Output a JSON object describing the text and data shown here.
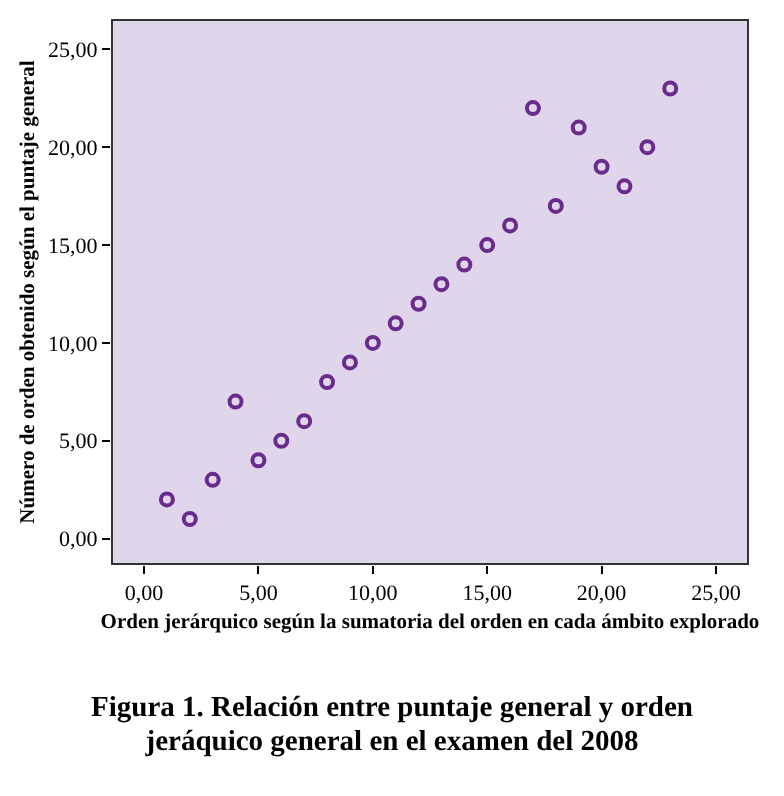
{
  "chart_data": {
    "type": "scatter",
    "xlabel": "Orden jerárquico según la sumatoria del orden en cada ámbito explorado",
    "ylabel": "Número de orden obtenido según el puntaje general",
    "annotations": [
      "Figura 1. Relación entre puntaje general y orden jeráquico general en el examen del 2008"
    ],
    "x": [
      1,
      2,
      3,
      4,
      5,
      6,
      7,
      8,
      9,
      10,
      11,
      12,
      13,
      14,
      15,
      16,
      17,
      18,
      19,
      20,
      21,
      22,
      23
    ],
    "series": [
      {
        "color": "#6a2c8c",
        "values": [
          2,
          1,
          3,
          7,
          4,
          5,
          6,
          8,
          9,
          10,
          11,
          12,
          13,
          14,
          15,
          16,
          22,
          17,
          21,
          19,
          18,
          20,
          23
        ]
      }
    ],
    "marker": "circle",
    "xlim": [
      -1.4,
      26.4
    ],
    "ylim": [
      -1.3,
      26.5
    ],
    "xticks": [
      {
        "value": 0,
        "label": "0,00"
      },
      {
        "value": 5,
        "label": "5,00"
      },
      {
        "value": 10,
        "label": "10,00"
      },
      {
        "value": 15,
        "label": "15,00"
      },
      {
        "value": 20,
        "label": "20,00"
      },
      {
        "value": 25,
        "label": "25,00"
      }
    ],
    "yticks": [
      {
        "value": 0,
        "label": "0,00"
      },
      {
        "value": 5,
        "label": "5,00"
      },
      {
        "value": 10,
        "label": "10,00"
      },
      {
        "value": 15,
        "label": "15,00"
      },
      {
        "value": 20,
        "label": "20,00"
      },
      {
        "value": 25,
        "label": "25,00"
      }
    ]
  }
}
